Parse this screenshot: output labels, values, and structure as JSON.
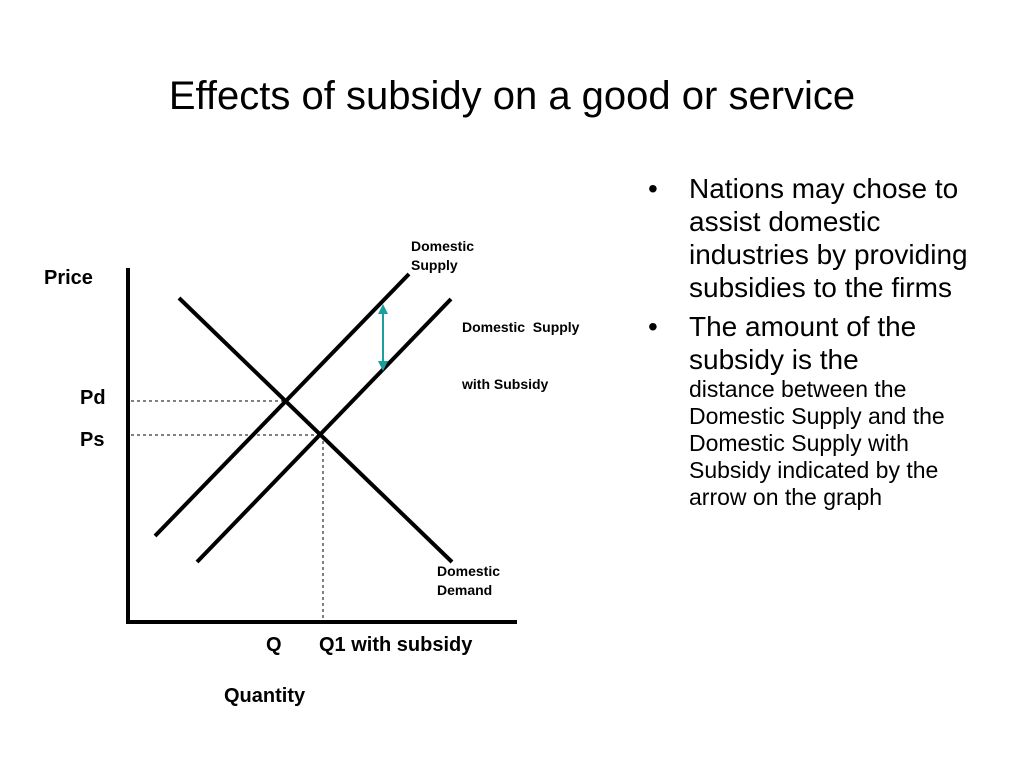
{
  "slide": {
    "title": "Effects of subsidy on a good or service"
  },
  "graph": {
    "price_label": "Price",
    "pd_label": "Pd",
    "ps_label": "Ps",
    "q_label": "Q",
    "q1_label": "Q1 with subsidy",
    "quantity_label": "Quantity",
    "supply_label_line1": "Domestic",
    "supply_label_line2": "Supply",
    "subsidy_label_line1": "Domestic  Supply",
    "subsidy_label_line2": "with Subsidy",
    "demand_label_line1": "Domestic",
    "demand_label_line2": "Demand",
    "arrow_color": "#1a9e9e",
    "line_color": "#000000"
  },
  "bullets": [
    {
      "main": "Nations may chose to assist domestic industries by providing subsidies to the firms",
      "rest": ""
    },
    {
      "main": "The amount of the subsidy is the",
      "rest": "distance between the Domestic Supply and the Domestic Supply with Subsidy indicated by the arrow on the graph"
    }
  ]
}
